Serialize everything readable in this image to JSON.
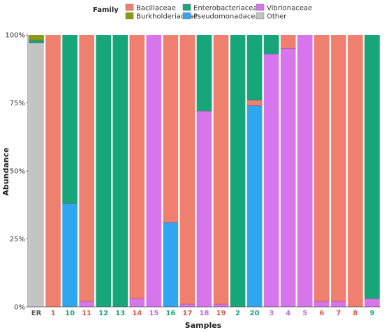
{
  "colors": {
    "Bacillaceae": "#ef7f6f",
    "Burkholderiaceae": "#8a9a12",
    "Enterobacteriaceae": "#17a57a",
    "Pseudomonadaceae": "#30a6f0",
    "Vibrionaceae": "#d775ed",
    "Other": "#c4c4c4"
  },
  "chart_data": {
    "type": "bar",
    "stacked": true,
    "xlabel": "Samples",
    "ylabel": "Abundance",
    "ylim": [
      0,
      100
    ],
    "y_ticks": [
      "0%",
      "25%",
      "50%",
      "75%",
      "100%"
    ],
    "legend_title": "Family",
    "legend_position": "top",
    "legend": [
      "Bacillaceae",
      "Burkholderiaceae",
      "Enterobacteriaceae",
      "Pseudomonadaceae",
      "Vibrionaceae",
      "Other"
    ],
    "categories": [
      "ER",
      "1",
      "10",
      "11",
      "12",
      "13",
      "14",
      "15",
      "16",
      "17",
      "18",
      "19",
      "2",
      "20",
      "3",
      "4",
      "5",
      "6",
      "7",
      "8",
      "9"
    ],
    "category_label_colors": [
      "#555555",
      "#d8564f",
      "#17a57a",
      "#d8564f",
      "#17a57a",
      "#17a57a",
      "#d8564f",
      "#c667dd",
      "#17a57a",
      "#d8564f",
      "#c667dd",
      "#d8564f",
      "#17a57a",
      "#17a57a",
      "#c667dd",
      "#c667dd",
      "#c667dd",
      "#d8564f",
      "#d8564f",
      "#d8564f",
      "#17a57a"
    ],
    "series": [
      {
        "name": "Other",
        "values": [
          97,
          0,
          0,
          0,
          0,
          0,
          0,
          0,
          0,
          0,
          0,
          0,
          0,
          0,
          0,
          0,
          0,
          0,
          0,
          0,
          0
        ]
      },
      {
        "name": "Pseudomonadaceae",
        "values": [
          0,
          0,
          38,
          0,
          0,
          0,
          0,
          0,
          31,
          0,
          0,
          0,
          0,
          74,
          0,
          0,
          0,
          0,
          0,
          0,
          0
        ]
      },
      {
        "name": "Vibrionaceae",
        "values": [
          0,
          0,
          0,
          2,
          0,
          0,
          3,
          100,
          0,
          1,
          72,
          1,
          0,
          0,
          93,
          95,
          100,
          2,
          2,
          0,
          3
        ]
      },
      {
        "name": "Bacillaceae",
        "values": [
          0,
          100,
          0,
          98,
          0,
          0,
          97,
          0,
          69,
          99,
          0,
          99,
          0,
          2,
          0,
          5,
          0,
          98,
          98,
          100,
          0
        ]
      },
      {
        "name": "Enterobacteriaceae",
        "values": [
          1,
          0,
          62,
          0,
          100,
          100,
          0,
          0,
          0,
          0,
          28,
          0,
          100,
          24,
          7,
          0,
          0,
          0,
          0,
          0,
          97
        ]
      },
      {
        "name": "Burkholderiaceae",
        "values": [
          2,
          0,
          0,
          0,
          0,
          0,
          0,
          0,
          0,
          0,
          0,
          0,
          0,
          0,
          0,
          0,
          0,
          0,
          0,
          0,
          0
        ]
      }
    ]
  }
}
